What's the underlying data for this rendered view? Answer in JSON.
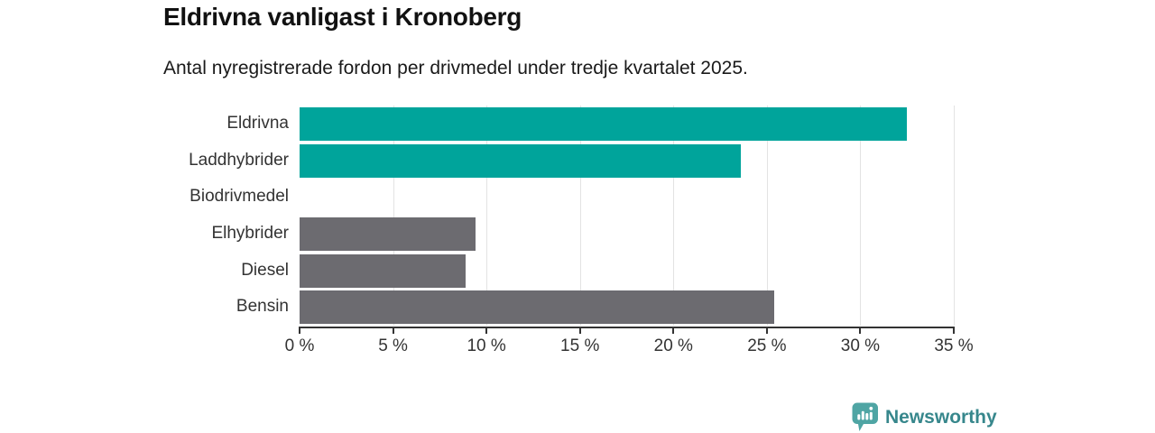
{
  "header": {
    "title": "Eldrivna vanligast i Kronoberg",
    "subtitle": "Antal nyregistrerade fordon per drivmedel under tredje kvartalet 2025."
  },
  "chart_data": {
    "type": "bar",
    "orientation": "horizontal",
    "title": "Eldrivna vanligast i Kronoberg",
    "subtitle": "Antal nyregistrerade fordon per drivmedel under tredje kvartalet 2025.",
    "categories": [
      "Eldrivna",
      "Laddhybrider",
      "Biodrivmedel",
      "Elhybrider",
      "Diesel",
      "Bensin"
    ],
    "values": [
      32.5,
      23.6,
      0,
      9.4,
      8.9,
      25.4
    ],
    "unit": "%",
    "bar_colors": [
      "#00A49B",
      "#00A49B",
      "#6C6B70",
      "#6C6B70",
      "#6C6B70",
      "#6C6B70"
    ],
    "xlabel": "",
    "ylabel": "",
    "xlim": [
      0,
      35
    ],
    "x_ticks": [
      0,
      5,
      10,
      15,
      20,
      25,
      30,
      35
    ],
    "x_tick_labels": [
      "0 %",
      "5 %",
      "10 %",
      "15 %",
      "20 %",
      "25 %",
      "30 %",
      "35 %"
    ],
    "grid": true,
    "legend": "none"
  },
  "branding": {
    "logo_text": "Newsworthy",
    "logo_icon": "bar-chart-speech-bubble",
    "icon_color": "#4FA5A4",
    "text_color": "#37878C"
  },
  "colors": {
    "accent_teal": "#00A49B",
    "neutral_gray": "#6C6B70",
    "gridline": "#E3E3E3",
    "axis": "#333333",
    "title_text": "#111111",
    "body_text": "#1A1A1A"
  }
}
